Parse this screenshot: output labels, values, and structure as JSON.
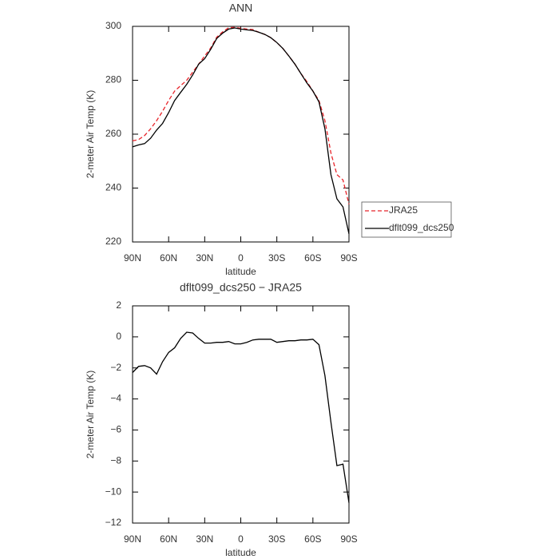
{
  "chart_data": [
    {
      "type": "line",
      "title": "ANN",
      "xlabel": "latitude",
      "ylabel": "2-meter Air Temp (K)",
      "x": [
        90,
        85,
        80,
        75,
        70,
        65,
        60,
        55,
        50,
        45,
        40,
        35,
        30,
        25,
        20,
        15,
        10,
        5,
        0,
        -5,
        -10,
        -15,
        -20,
        -25,
        -30,
        -35,
        -40,
        -45,
        -50,
        -55,
        -60,
        -65,
        -70,
        -75,
        -80,
        -85,
        -90
      ],
      "xlim": [
        90,
        -90
      ],
      "xticks": [
        {
          "value": 90,
          "label": "90N"
        },
        {
          "value": 60,
          "label": "60N"
        },
        {
          "value": 30,
          "label": "30N"
        },
        0,
        {
          "value": -30,
          "label": "30S"
        },
        {
          "value": -60,
          "label": "60S"
        },
        {
          "value": -90,
          "label": "90S"
        }
      ],
      "ylim": [
        220,
        300
      ],
      "yticks": [
        220,
        240,
        260,
        280,
        300
      ],
      "legend": "right",
      "series": [
        {
          "name": "JRA25",
          "color": "#e8242a",
          "dashed": true,
          "values": [
            257.5,
            258,
            259.5,
            262,
            265,
            268.5,
            272.5,
            276,
            278,
            280,
            283,
            286,
            289,
            292,
            296,
            298,
            299.5,
            299.6,
            299.3,
            299,
            298.8,
            297.8,
            297,
            295.8,
            294,
            291.8,
            289,
            286,
            282.5,
            279.5,
            276,
            272.5,
            265,
            253,
            245,
            243,
            234
          ]
        },
        {
          "name": "dflt099_dcs250",
          "color": "#000000",
          "dashed": false,
          "values": [
            255.3,
            256,
            256.5,
            258.5,
            261.5,
            264,
            268,
            272.5,
            275.5,
            278.5,
            282,
            286,
            288,
            291.5,
            295.5,
            297.5,
            299,
            299.4,
            299,
            298.7,
            298.5,
            297.8,
            297,
            295.8,
            294,
            291.8,
            289,
            286,
            282.5,
            279,
            276,
            272,
            262,
            245,
            236,
            233,
            223
          ]
        }
      ]
    },
    {
      "type": "line",
      "title": "dflt099_dcs250 − JRA25",
      "xlabel": "latitude",
      "ylabel": "2-meter Air Temp (K)",
      "x": [
        90,
        85,
        80,
        75,
        70,
        65,
        60,
        55,
        50,
        45,
        40,
        35,
        30,
        25,
        20,
        15,
        10,
        5,
        0,
        -5,
        -10,
        -15,
        -20,
        -25,
        -30,
        -35,
        -40,
        -45,
        -50,
        -55,
        -60,
        -65,
        -70,
        -75,
        -80,
        -85,
        -90
      ],
      "xlim": [
        90,
        -90
      ],
      "xticks": [
        {
          "value": 90,
          "label": "90N"
        },
        {
          "value": 60,
          "label": "60N"
        },
        {
          "value": 30,
          "label": "30N"
        },
        0,
        {
          "value": -30,
          "label": "30S"
        },
        {
          "value": -60,
          "label": "60S"
        },
        {
          "value": -90,
          "label": "90S"
        }
      ],
      "ylim": [
        -12,
        2
      ],
      "yticks": [
        {
          "value": -12,
          "label": "−12"
        },
        {
          "value": -10,
          "label": "−10"
        },
        {
          "value": -8,
          "label": "−8"
        },
        {
          "value": -6,
          "label": "−6"
        },
        {
          "value": -4,
          "label": "−4"
        },
        {
          "value": -2,
          "label": "−2"
        },
        0,
        2
      ],
      "color": "#000000",
      "values": [
        -2.3,
        -1.9,
        -1.85,
        -2.0,
        -2.4,
        -1.6,
        -1.0,
        -0.7,
        -0.1,
        0.3,
        0.25,
        -0.1,
        -0.4,
        -0.4,
        -0.35,
        -0.35,
        -0.3,
        -0.45,
        -0.45,
        -0.35,
        -0.2,
        -0.15,
        -0.15,
        -0.15,
        -0.35,
        -0.3,
        -0.25,
        -0.25,
        -0.2,
        -0.2,
        -0.15,
        -0.5,
        -2.5,
        -5.5,
        -8.3,
        -8.2,
        -10.7
      ]
    }
  ]
}
